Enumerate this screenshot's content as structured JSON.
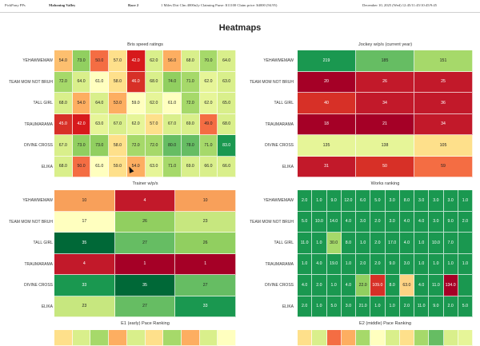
{
  "header": {
    "app": "PickPony PPs",
    "track": "Mahoning Valley",
    "race": "Race 2",
    "description": "1 Miles Dirt Clm 4000n2y Claiming Purse: $11100 Claim price: $4000 (94.95)",
    "date": "December 10, 2025 (Wed) 12:45/11:45/10:45/9:45"
  },
  "page_title": "Heatmaps",
  "horses": [
    "YEHAWMEMAW",
    "TEAM MOM NOT BRUH",
    "TALL GIRL",
    "TRAUMARAMA",
    "DIVINE CROSS",
    "ELIKA"
  ],
  "chart_data": [
    {
      "type": "heatmap",
      "title": "Bris speed ratings",
      "rows": [
        "YEHAWMEMAW",
        "TEAM MOM NOT BRUH",
        "TALL GIRL",
        "TRAUMARAMA",
        "DIVINE CROSS",
        "ELIKA"
      ],
      "values": [
        [
          "54.0",
          "73.0",
          "50.0",
          "57.0",
          "42.0",
          "62.0",
          "56.0",
          "68.0",
          "70.0",
          "64.0"
        ],
        [
          "72.0",
          "64.0",
          "61.0",
          "58.0",
          "46.0",
          "68.0",
          "74.0",
          "71.0",
          "62.0",
          "63.0"
        ],
        [
          "68.0",
          "54.0",
          "64.0",
          "53.0",
          "59.0",
          "62.0",
          "61.0",
          "72.0",
          "62.0",
          "65.0"
        ],
        [
          "45.0",
          "42.0",
          "63.0",
          "67.0",
          "62.0",
          "57.0",
          "67.0",
          "69.0",
          "49.0",
          "68.0"
        ],
        [
          "67.0",
          "73.0",
          "73.0",
          "58.0",
          "72.0",
          "72.0",
          "80.0",
          "78.0",
          "71.0",
          "83.0"
        ],
        [
          "68.0",
          "50.0",
          "61.0",
          "59.0",
          "54.0",
          "63.0",
          "71.0",
          "69.0",
          "66.0",
          "66.0"
        ]
      ],
      "colors": [
        [
          "#fdbf6f",
          "#91cf60",
          "#f46d43",
          "#fee08b",
          "#d7191c",
          "#d9ef8b",
          "#fdae61",
          "#d9ef8b",
          "#a6d96a",
          "#d9ef8b"
        ],
        [
          "#a6d96a",
          "#d9ef8b",
          "#ffffbf",
          "#fee08b",
          "#d73027",
          "#d9ef8b",
          "#91cf60",
          "#a6d96a",
          "#e6f598",
          "#d9ef8b"
        ],
        [
          "#d9ef8b",
          "#fdae61",
          "#d9ef8b",
          "#fdae61",
          "#ffffbf",
          "#e6f598",
          "#ffffbf",
          "#a6d96a",
          "#e6f598",
          "#d9ef8b"
        ],
        [
          "#d73027",
          "#d7191c",
          "#e6f598",
          "#d9ef8b",
          "#e6f598",
          "#fee08b",
          "#d9ef8b",
          "#d9ef8b",
          "#f46d43",
          "#d9ef8b"
        ],
        [
          "#d9ef8b",
          "#91cf60",
          "#91cf60",
          "#fee08b",
          "#a6d96a",
          "#a6d96a",
          "#66bd63",
          "#66bd63",
          "#a6d96a",
          "#1a9850"
        ],
        [
          "#d9ef8b",
          "#f46d43",
          "#ffffbf",
          "#fee08b",
          "#fdae61",
          "#e6f598",
          "#a6d96a",
          "#d9ef8b",
          "#d9ef8b",
          "#d9ef8b"
        ]
      ]
    },
    {
      "type": "heatmap",
      "title": "Jockey w/p/s (current year)",
      "rows": [
        "YEHAWMEMAW",
        "TEAM MOM NOT BRUH",
        "TALL GIRL",
        "TRAUMARAMA",
        "DIVINE CROSS",
        "ELIKA"
      ],
      "values": [
        [
          "219",
          "185",
          "151"
        ],
        [
          "20",
          "26",
          "25"
        ],
        [
          "40",
          "34",
          "36"
        ],
        [
          "18",
          "21",
          "34"
        ],
        [
          "135",
          "138",
          "105"
        ],
        [
          "31",
          "50",
          "59"
        ]
      ],
      "colors": [
        [
          "#1a9850",
          "#66bd63",
          "#a6d96a"
        ],
        [
          "#a50026",
          "#c2192a",
          "#c2192a"
        ],
        [
          "#d73027",
          "#c2192a",
          "#c2192a"
        ],
        [
          "#a50026",
          "#a50026",
          "#c2192a"
        ],
        [
          "#e6f598",
          "#e6f598",
          "#fee08b"
        ],
        [
          "#c2192a",
          "#d73027",
          "#f46d43"
        ]
      ]
    },
    {
      "type": "heatmap",
      "title": "Trainer w/p/s",
      "rows": [
        "YEHAWMEMAW",
        "TEAM MOM NOT BRUH",
        "TALL GIRL",
        "TRAUMARAMA",
        "DIVINE CROSS",
        "ELIKA"
      ],
      "values": [
        [
          "10",
          "4",
          "10"
        ],
        [
          "17",
          "26",
          "23"
        ],
        [
          "35",
          "27",
          "26"
        ],
        [
          "4",
          "1",
          "1"
        ],
        [
          "33",
          "35",
          "27"
        ],
        [
          "23",
          "27",
          "33"
        ]
      ],
      "colors": [
        [
          "#f8a05a",
          "#c2192a",
          "#f8a05a"
        ],
        [
          "#ffffbf",
          "#91cf60",
          "#c7e77f"
        ],
        [
          "#006837",
          "#66bd63",
          "#91cf60"
        ],
        [
          "#c2192a",
          "#a50026",
          "#a50026"
        ],
        [
          "#1a9850",
          "#006837",
          "#66bd63"
        ],
        [
          "#c7e77f",
          "#66bd63",
          "#1a9850"
        ]
      ]
    },
    {
      "type": "heatmap",
      "title": "Works ranking",
      "rows": [
        "YEHAWMEMAW",
        "TEAM MOM NOT BRUH",
        "TALL GIRL",
        "TRAUMARAMA",
        "DIVINE CROSS",
        "ELIKA"
      ],
      "values": [
        [
          "2.0",
          "1.0",
          "9.0",
          "12.0",
          "6.0",
          "5.0",
          "3.0",
          "8.0",
          "3.0",
          "3.0",
          "3.0",
          "1.0"
        ],
        [
          "5.0",
          "10.0",
          "14.0",
          "4.0",
          "3.0",
          "2.0",
          "3.0",
          "4.0",
          "4.0",
          "3.0",
          "9.0",
          "2.0"
        ],
        [
          "11.0",
          "1.0",
          "30.0",
          "8.0",
          "1.0",
          "2.0",
          "17.0",
          "4.0",
          "1.0",
          "10.0",
          "7.0",
          ""
        ],
        [
          "1.0",
          "4.0",
          "19.0",
          "1.0",
          "2.0",
          "2.0",
          "9.0",
          "3.0",
          "1.0",
          "1.0",
          "1.0",
          "1.0"
        ],
        [
          "4.0",
          "2.0",
          "1.0",
          "4.0",
          "22.0",
          "109.0",
          "8.0",
          "63.0",
          "4.0",
          "11.0",
          "134.0",
          ""
        ],
        [
          "2.0",
          "1.0",
          "5.0",
          "3.0",
          "21.0",
          "1.0",
          "1.0",
          "2.0",
          "11.0",
          "9.0",
          "2.0",
          "5.0"
        ]
      ],
      "colors": [
        [
          "#1a9850",
          "#1a9850",
          "#1a9850",
          "#1a9850",
          "#1a9850",
          "#1a9850",
          "#1a9850",
          "#1a9850",
          "#1a9850",
          "#1a9850",
          "#1a9850",
          "#1a9850"
        ],
        [
          "#1a9850",
          "#1a9850",
          "#1a9850",
          "#1a9850",
          "#1a9850",
          "#1a9850",
          "#1a9850",
          "#1a9850",
          "#1a9850",
          "#1a9850",
          "#1a9850",
          "#1a9850"
        ],
        [
          "#1a9850",
          "#1a9850",
          "#a6d96a",
          "#1a9850",
          "#1a9850",
          "#1a9850",
          "#1a9850",
          "#1a9850",
          "#1a9850",
          "#1a9850",
          "#1a9850",
          "#1a9850"
        ],
        [
          "#1a9850",
          "#1a9850",
          "#1a9850",
          "#1a9850",
          "#1a9850",
          "#1a9850",
          "#1a9850",
          "#1a9850",
          "#1a9850",
          "#1a9850",
          "#1a9850",
          "#1a9850"
        ],
        [
          "#1a9850",
          "#1a9850",
          "#1a9850",
          "#1a9850",
          "#91cf60",
          "#d73027",
          "#1a9850",
          "#fdd384",
          "#1a9850",
          "#1a9850",
          "#a50026",
          "#1a9850"
        ],
        [
          "#1a9850",
          "#1a9850",
          "#1a9850",
          "#1a9850",
          "#1a9850",
          "#1a9850",
          "#1a9850",
          "#1a9850",
          "#1a9850",
          "#1a9850",
          "#1a9850",
          "#1a9850"
        ]
      ]
    },
    {
      "type": "heatmap",
      "title": "E1 (early) Pace Ranking",
      "rows": [],
      "values": [],
      "colors": [
        [
          "#fee08b",
          "#d9ef8b",
          "#a6d96a",
          "#fdae61",
          "#d9ef8b",
          "#fee08b",
          "#a6d96a",
          "#fdae61",
          "#d9ef8b",
          "#ffffbf"
        ]
      ]
    },
    {
      "type": "heatmap",
      "title": "E2 (middle) Pace Ranking",
      "rows": [],
      "values": [],
      "colors": [
        [
          "#fee08b",
          "#d9ef8b",
          "#f46d43",
          "#fdae61",
          "#a6d96a",
          "#ffffbf",
          "#d9ef8b",
          "#fee08b",
          "#a6d96a",
          "#66bd63",
          "#d9ef8b",
          "#e6f598"
        ]
      ]
    }
  ]
}
